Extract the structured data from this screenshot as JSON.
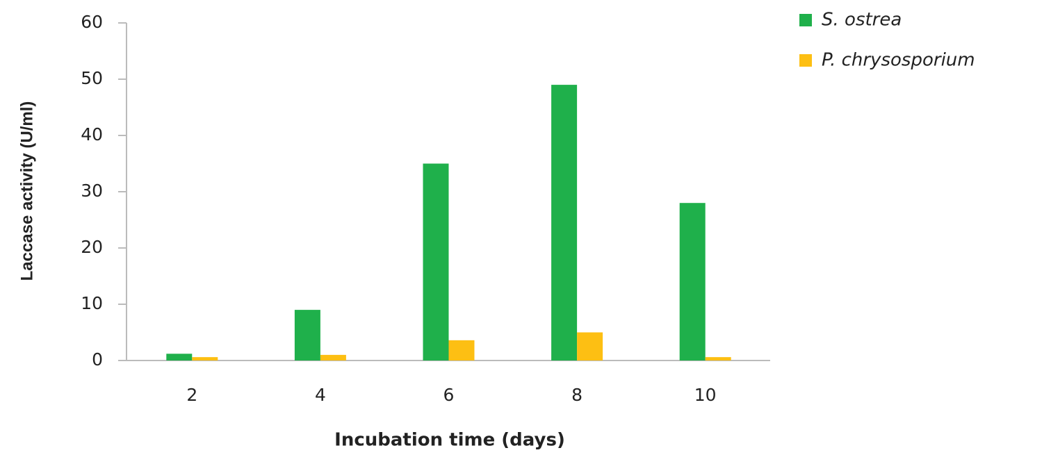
{
  "chart_data": {
    "type": "bar",
    "categories": [
      "2",
      "4",
      "6",
      "8",
      "10"
    ],
    "series": [
      {
        "name": "S. ostrea",
        "color": "#1fb04b",
        "values": [
          1.2,
          9,
          35,
          49,
          28
        ]
      },
      {
        "name": "P. chrysosporium",
        "color": "#fdbf13",
        "values": [
          0.6,
          1,
          3.6,
          5,
          0.6
        ]
      }
    ],
    "x_label": "Incubation time (days)",
    "y_label": "Laccase activity (U/ml)",
    "ylim": [
      0,
      60
    ],
    "yticks": [
      0,
      10,
      20,
      30,
      40,
      50,
      60
    ],
    "grid": false,
    "legend": "top-right"
  }
}
